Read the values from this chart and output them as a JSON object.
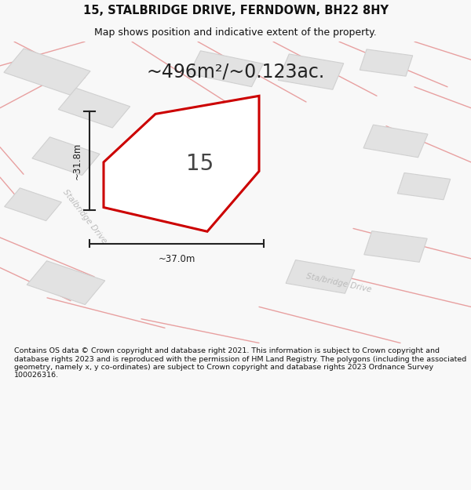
{
  "title_line1": "15, STALBRIDGE DRIVE, FERNDOWN, BH22 8HY",
  "title_line2": "Map shows position and indicative extent of the property.",
  "area_text": "~496m²/~0.123ac.",
  "property_number": "15",
  "dim_width": "~37.0m",
  "dim_height": "~31.8m",
  "footer_text": "Contains OS data © Crown copyright and database right 2021. This information is subject to Crown copyright and database rights 2023 and is reproduced with the permission of HM Land Registry. The polygons (including the associated geometry, namely x, y co-ordinates) are subject to Crown copyright and database rights 2023 Ordnance Survey 100026316.",
  "bg_color": "#f8f8f8",
  "map_bg": "#efefef",
  "road_stroke": "#e8a0a0",
  "property_color": "#cc0000",
  "dim_color": "#222222",
  "road_label_color": "#bbbbbb",
  "property_label_color": "#444444",
  "title_color": "#111111",
  "footer_color": "#111111",
  "block_color": "#e2e2e2",
  "block_edge": "#d0d0d0",
  "title_fontsize": 10.5,
  "subtitle_fontsize": 9,
  "area_fontsize": 17,
  "prop_num_fontsize": 20,
  "dim_fontsize": 8.5,
  "road_label_fontsize": 7.5,
  "footer_fontsize": 6.8
}
